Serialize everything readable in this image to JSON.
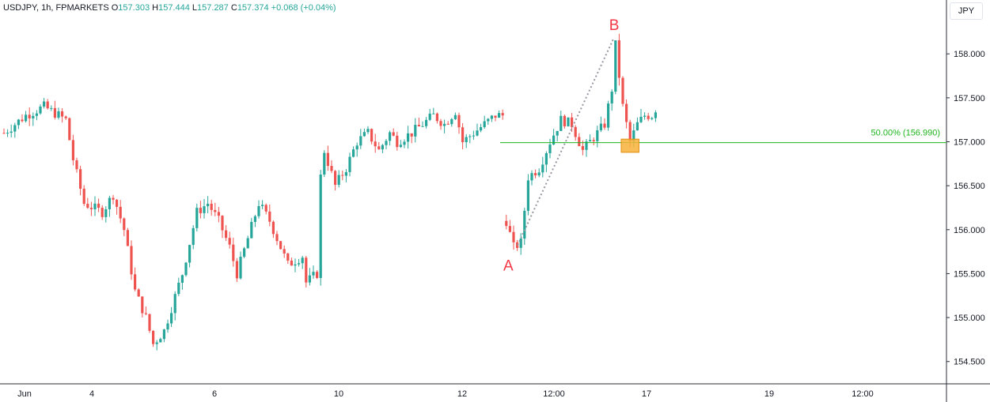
{
  "legend": {
    "symbol": "USDJPY, 1h, FPMARKETS",
    "o_label": "O",
    "o_value": "157.303",
    "h_label": "H",
    "h_value": "157.444",
    "l_label": "L",
    "l_value": "157.287",
    "c_label": "C",
    "c_value": "157.374",
    "change": "+0.068 (+0.04%)"
  },
  "currency_button": "JPY",
  "colors": {
    "up": "#26a69a",
    "down": "#ef5350",
    "fib": "#1fb51f",
    "marker": "#f23645",
    "zone": "#f7b239"
  },
  "chart_data": {
    "type": "candlestick",
    "ylim": [
      154.3,
      158.55
    ],
    "y_ticks": [
      "158.000",
      "157.500",
      "157.000",
      "156.500",
      "156.000",
      "155.500",
      "155.000",
      "154.500"
    ],
    "x_ticks": [
      "Jun",
      "4",
      "6",
      "10",
      "12",
      "12:00",
      "17",
      "19",
      "12:00"
    ],
    "anchors": [
      [
        0,
        157.1
      ],
      [
        6,
        157.3
      ],
      [
        11,
        157.4
      ],
      [
        17,
        157.25
      ],
      [
        19,
        156.8
      ],
      [
        22,
        156.3
      ],
      [
        27,
        156.2
      ],
      [
        30,
        156.4
      ],
      [
        33,
        156.0
      ],
      [
        36,
        155.3
      ],
      [
        39,
        155.0
      ],
      [
        41,
        154.7
      ],
      [
        44,
        154.85
      ],
      [
        49,
        155.5
      ],
      [
        53,
        156.2
      ],
      [
        56,
        156.3
      ],
      [
        59,
        156.1
      ],
      [
        62,
        155.8
      ],
      [
        64,
        155.5
      ],
      [
        67,
        155.9
      ],
      [
        70,
        156.3
      ],
      [
        73,
        156.1
      ],
      [
        76,
        155.8
      ],
      [
        78,
        155.6
      ],
      [
        82,
        155.7
      ],
      [
        83,
        155.4
      ],
      [
        86,
        155.5
      ],
      [
        87,
        156.6
      ],
      [
        88,
        156.9
      ],
      [
        91,
        156.5
      ],
      [
        94,
        156.7
      ],
      [
        97,
        157.0
      ],
      [
        100,
        157.1
      ],
      [
        103,
        156.9
      ],
      [
        106,
        157.1
      ],
      [
        108,
        157.0
      ],
      [
        112,
        157.1
      ],
      [
        115,
        157.2
      ],
      [
        118,
        157.3
      ],
      [
        121,
        157.2
      ],
      [
        124,
        157.35
      ],
      [
        126,
        157.0
      ],
      [
        129,
        157.1
      ],
      [
        132,
        157.2
      ],
      [
        135,
        157.3
      ],
      [
        137,
        157.3
      ]
    ],
    "anchors_after_gap": [
      [
        138,
        156.1
      ],
      [
        140,
        155.8
      ],
      [
        142,
        155.85
      ],
      [
        144,
        156.6
      ],
      [
        147,
        156.7
      ],
      [
        150,
        157.0
      ],
      [
        153,
        157.25
      ],
      [
        156,
        157.2
      ],
      [
        159,
        156.9
      ],
      [
        162,
        157.05
      ],
      [
        165,
        157.2
      ],
      [
        167,
        157.6
      ],
      [
        168,
        158.1
      ],
      [
        170,
        157.4
      ],
      [
        172,
        157.0
      ],
      [
        174,
        157.2
      ],
      [
        176,
        157.3
      ],
      [
        178,
        157.3
      ],
      [
        179,
        157.374
      ]
    ],
    "pattern_points": [
      {
        "label": "A",
        "bar": 140,
        "price": 155.75
      },
      {
        "label": "B",
        "bar": 168,
        "price": 158.2
      }
    ],
    "fib_line": {
      "value": 156.99,
      "label": "50.00% (156.990)"
    },
    "highlight_zone": {
      "bar_from": 170,
      "bar_to": 174,
      "price_low": 156.88,
      "price_high": 157.03
    }
  }
}
